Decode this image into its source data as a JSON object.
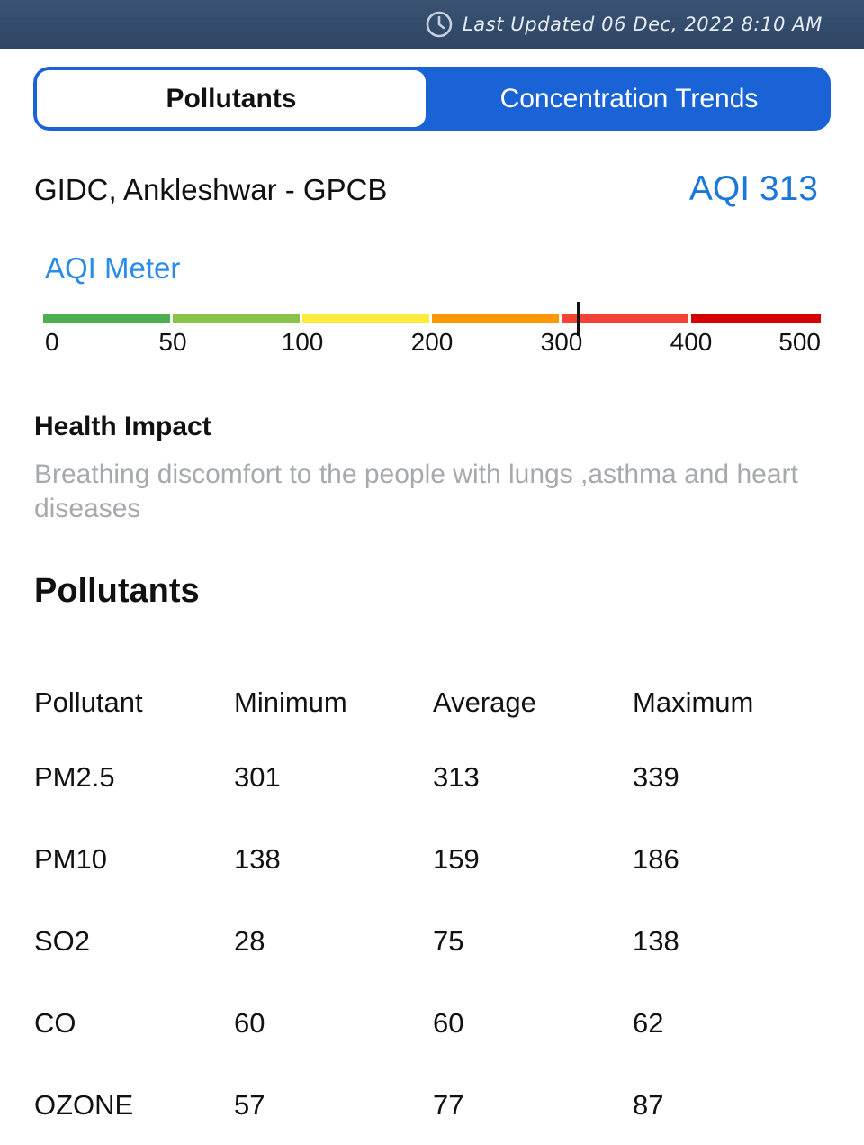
{
  "status": {
    "clock_icon": "clock-icon",
    "last_updated": "Last Updated 06 Dec, 2022 8:10 AM"
  },
  "tabs": [
    {
      "label": "Pollutants",
      "active": true
    },
    {
      "label": "Concentration Trends",
      "active": false
    }
  ],
  "station": {
    "name": "GIDC, Ankleshwar - GPCB",
    "aqi_label": "AQI 313",
    "aqi_value": 313
  },
  "meter": {
    "title": "AQI Meter",
    "ticks": [
      "0",
      "50",
      "100",
      "200",
      "300",
      "400",
      "500"
    ],
    "colors": [
      "#4caf50",
      "#8bc34a",
      "#ffeb3b",
      "#ff9800",
      "#f44336",
      "#d50000"
    ]
  },
  "health": {
    "title": "Health Impact",
    "text": "Breathing discomfort to the people with lungs ,asthma and heart diseases"
  },
  "pollutants": {
    "title": "Pollutants",
    "headers": [
      "Pollutant",
      "Minimum",
      "Average",
      "Maximum"
    ],
    "rows": [
      [
        "PM2.5",
        "301",
        "313",
        "339"
      ],
      [
        "PM10",
        "138",
        "159",
        "186"
      ],
      [
        "SO2",
        "28",
        "75",
        "138"
      ],
      [
        "CO",
        "60",
        "60",
        "62"
      ],
      [
        "OZONE",
        "57",
        "77",
        "87"
      ]
    ]
  }
}
